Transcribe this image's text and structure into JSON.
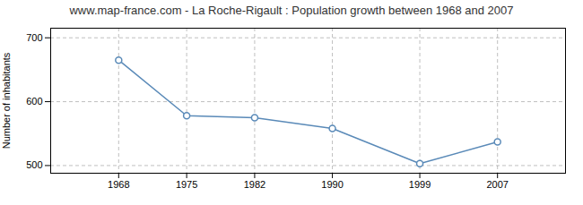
{
  "chart_data": {
    "type": "line",
    "title": "www.map-france.com - La Roche-Rigault : Population growth between 1968 and 2007",
    "x": [
      1968,
      1975,
      1982,
      1990,
      1999,
      2007
    ],
    "values": [
      665,
      578,
      575,
      558,
      503,
      537
    ],
    "color": "#5a8ab8",
    "marker": "o",
    "ylabel": "Number of inhabitants",
    "xlim": [
      1961,
      2014
    ],
    "xticks": [
      1968,
      1975,
      1982,
      1990,
      1999,
      2007
    ],
    "ylim": [
      488,
      715
    ],
    "yticks": [
      500,
      600,
      700
    ],
    "grid": true
  }
}
